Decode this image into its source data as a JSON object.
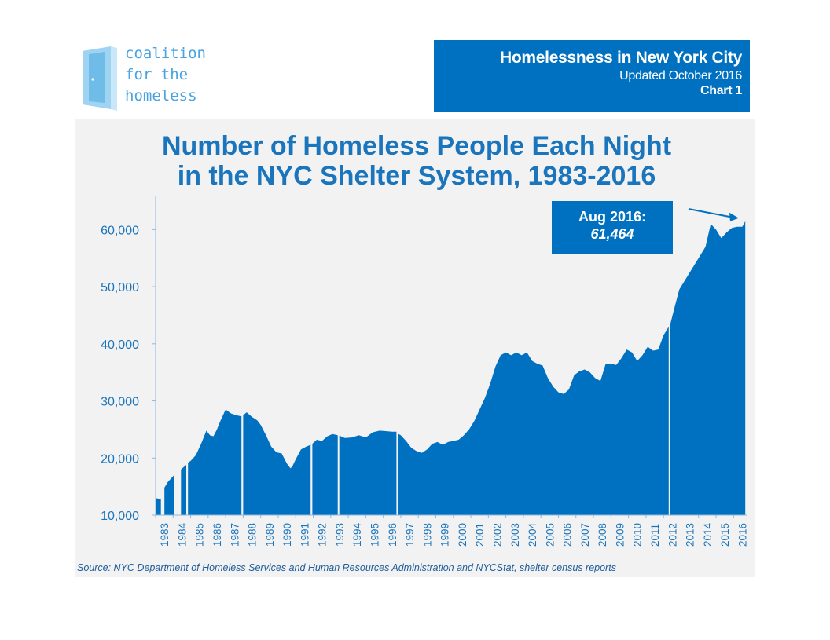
{
  "logo": {
    "lines": [
      "coalition",
      "for the",
      "homeless"
    ],
    "icon": "open-door-icon",
    "color": "#4aa3df"
  },
  "header": {
    "title": "Homelessness in New York City",
    "updated": "Updated October 2016",
    "chart_number": "Chart 1",
    "background": "#0070c0"
  },
  "callout": {
    "line1": "Aug 2016:",
    "line2": "61,464"
  },
  "source": "Source:  NYC Department of Homeless Services and Human Resources Administration and NYCStat, shelter census reports",
  "chart_data": {
    "type": "area",
    "title": "Number of Homeless People Each Night in the NYC Shelter System, 1983-2016",
    "title_lines": [
      "Number of Homeless People Each Night",
      "in the NYC Shelter System, 1983-2016"
    ],
    "color": "#0070c0",
    "xlabel": "",
    "ylabel": "",
    "ylim": [
      10000,
      65000
    ],
    "yticks": [
      10000,
      20000,
      30000,
      40000,
      50000,
      60000
    ],
    "ytick_labels": [
      "10,000",
      "20,000",
      "30,000",
      "40,000",
      "50,000",
      "60,000"
    ],
    "xlim": [
      1983,
      2016.75
    ],
    "x_tick_labels": [
      "1983",
      "1984",
      "1985",
      "1986",
      "1987",
      "1988",
      "1989",
      "1990",
      "1991",
      "1992",
      "1993",
      "1994",
      "1995",
      "1996",
      "1997",
      "1998",
      "1999",
      "2000",
      "2001",
      "2002",
      "2003",
      "2004",
      "2005",
      "2006",
      "2007",
      "2008",
      "2009",
      "2010",
      "2011",
      "2012",
      "2013",
      "2014",
      "2015",
      "2016"
    ],
    "grid": false,
    "gaps": [
      [
        1983.3,
        1983.5
      ],
      [
        1984.05,
        1984.45
      ],
      [
        1984.75,
        1984.85
      ],
      [
        1987.9,
        1988.0
      ],
      [
        1991.85,
        1991.95
      ],
      [
        1993.4,
        1993.45
      ],
      [
        1996.75,
        1996.8
      ],
      [
        2012.3,
        2012.35
      ]
    ],
    "x": [
      1983.0,
      1983.3,
      1983.5,
      1983.7,
      1984.05,
      1984.45,
      1984.75,
      1984.85,
      1985.0,
      1985.3,
      1985.6,
      1985.9,
      1986.1,
      1986.3,
      1986.5,
      1986.7,
      1987.0,
      1987.3,
      1987.6,
      1987.9,
      1988.0,
      1988.2,
      1988.5,
      1988.8,
      1989.0,
      1989.3,
      1989.6,
      1989.9,
      1990.2,
      1990.5,
      1990.7,
      1990.8,
      1991.0,
      1991.3,
      1991.6,
      1991.85,
      1991.95,
      1992.2,
      1992.5,
      1992.8,
      1993.1,
      1993.4,
      1993.45,
      1993.8,
      1994.2,
      1994.6,
      1995.0,
      1995.4,
      1995.8,
      1996.2,
      1996.5,
      1996.75,
      1996.8,
      1997.0,
      1997.3,
      1997.6,
      1997.9,
      1998.2,
      1998.5,
      1998.8,
      1999.1,
      1999.4,
      1999.7,
      2000.0,
      2000.3,
      2000.6,
      2000.9,
      2001.2,
      2001.5,
      2001.8,
      2002.1,
      2002.4,
      2002.7,
      2003.0,
      2003.3,
      2003.6,
      2003.9,
      2004.2,
      2004.5,
      2004.8,
      2005.1,
      2005.4,
      2005.7,
      2006.0,
      2006.3,
      2006.6,
      2006.9,
      2007.2,
      2007.5,
      2007.8,
      2008.1,
      2008.4,
      2008.7,
      2009.0,
      2009.3,
      2009.6,
      2009.9,
      2010.2,
      2010.5,
      2010.8,
      2011.1,
      2011.4,
      2011.7,
      2012.0,
      2012.3,
      2012.35,
      2012.6,
      2012.9,
      2013.2,
      2013.5,
      2013.8,
      2014.1,
      2014.4,
      2014.7,
      2015.0,
      2015.3,
      2015.6,
      2015.9,
      2016.2,
      2016.5,
      2016.67
    ],
    "values": [
      13000,
      12800,
      14800,
      15800,
      17000,
      18000,
      18800,
      19200,
      19500,
      20500,
      22500,
      24800,
      24000,
      23800,
      25000,
      26500,
      28500,
      27800,
      27500,
      27300,
      27500,
      28000,
      27200,
      26600,
      25800,
      24000,
      22000,
      21000,
      20800,
      19000,
      18200,
      18500,
      19800,
      21500,
      22000,
      22300,
      22500,
      23200,
      23000,
      23800,
      24200,
      24000,
      24000,
      23500,
      23600,
      24000,
      23600,
      24500,
      24800,
      24700,
      24600,
      24600,
      24300,
      24000,
      23000,
      21800,
      21200,
      20900,
      21500,
      22500,
      22800,
      22300,
      22800,
      23000,
      23200,
      24000,
      25000,
      26500,
      28500,
      30500,
      33000,
      36000,
      38000,
      38500,
      38000,
      38500,
      38000,
      38500,
      37000,
      36500,
      36200,
      34000,
      32500,
      31500,
      31200,
      32000,
      34500,
      35200,
      35500,
      35000,
      34000,
      33500,
      36500,
      36500,
      36300,
      37500,
      39000,
      38500,
      37000,
      38000,
      39500,
      38800,
      39000,
      41500,
      43000,
      43000,
      46000,
      49500,
      51000,
      52500,
      54000,
      55500,
      57000,
      61000,
      60000,
      58500,
      59500,
      60300,
      60500,
      60500,
      61464
    ]
  }
}
